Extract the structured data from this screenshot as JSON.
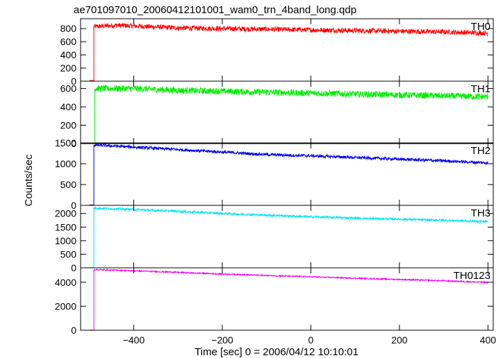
{
  "chart_data": {
    "type": "line",
    "title": "ae701097010_20060412101001_wam0_trn_4band_long.qdp",
    "xlabel": "Time [sec] 0 = 2006/04/12 10:10:01",
    "ylabel": "Counts/sec",
    "xlim": [
      -520,
      412
    ],
    "xticks": [
      -400,
      -200,
      0,
      200,
      400
    ],
    "xtick_labels": [
      "−400",
      "−200",
      "0",
      "200",
      "400"
    ],
    "grid": false,
    "panels": [
      {
        "name": "TH0",
        "color": "#ff0000",
        "ylim": [
          0,
          950
        ],
        "yticks": [
          0,
          200,
          400,
          600,
          800
        ],
        "onset": -490,
        "pre_level": 10,
        "points": [
          [
            -490,
            830
          ],
          [
            -440,
            850
          ],
          [
            -400,
            840
          ],
          [
            -300,
            810
          ],
          [
            -200,
            800
          ],
          [
            -100,
            790
          ],
          [
            0,
            780
          ],
          [
            100,
            770
          ],
          [
            200,
            760
          ],
          [
            300,
            750
          ],
          [
            400,
            730
          ]
        ],
        "noise": 38
      },
      {
        "name": "TH1",
        "color": "#00ee00",
        "ylim": [
          0,
          680
        ],
        "yticks": [
          0,
          200,
          400,
          600
        ],
        "onset": -488,
        "pre_level": 5,
        "points": [
          [
            -488,
            600
          ],
          [
            -400,
            600
          ],
          [
            -300,
            580
          ],
          [
            -200,
            570
          ],
          [
            -100,
            560
          ],
          [
            0,
            550
          ],
          [
            100,
            540
          ],
          [
            200,
            530
          ],
          [
            300,
            520
          ],
          [
            400,
            510
          ]
        ],
        "noise": 35
      },
      {
        "name": "TH2",
        "color": "#0000ee",
        "ylim": [
          0,
          1500
        ],
        "yticks": [
          0,
          500,
          1000,
          1500
        ],
        "onset": -490,
        "pre_level": 10,
        "points": [
          [
            -490,
            1450
          ],
          [
            -400,
            1400
          ],
          [
            -300,
            1340
          ],
          [
            -200,
            1280
          ],
          [
            -100,
            1220
          ],
          [
            0,
            1190
          ],
          [
            100,
            1150
          ],
          [
            200,
            1110
          ],
          [
            300,
            1070
          ],
          [
            400,
            1020
          ]
        ],
        "noise": 35
      },
      {
        "name": "TH3",
        "color": "#00e5ee",
        "ylim": [
          0,
          2300
        ],
        "yticks": [
          0,
          500,
          1000,
          1500,
          2000
        ],
        "onset": -490,
        "pre_level": 10,
        "points": [
          [
            -490,
            2200
          ],
          [
            -400,
            2150
          ],
          [
            -300,
            2080
          ],
          [
            -200,
            2000
          ],
          [
            -100,
            1940
          ],
          [
            0,
            1880
          ],
          [
            100,
            1830
          ],
          [
            200,
            1790
          ],
          [
            300,
            1750
          ],
          [
            400,
            1700
          ]
        ],
        "noise": 40
      },
      {
        "name": "TH0123",
        "color": "#ee00ee",
        "ylim": [
          0,
          5200
        ],
        "yticks": [
          0,
          2000,
          4000
        ],
        "ytick_labels": [
          "0",
          "2000",
          "4000"
        ],
        "onset": -490,
        "pre_level": 20,
        "points": [
          [
            -490,
            5050
          ],
          [
            -400,
            4950
          ],
          [
            -300,
            4820
          ],
          [
            -200,
            4680
          ],
          [
            -100,
            4560
          ],
          [
            0,
            4450
          ],
          [
            100,
            4330
          ],
          [
            200,
            4230
          ],
          [
            300,
            4120
          ],
          [
            400,
            3980
          ]
        ],
        "noise": 50
      }
    ]
  }
}
